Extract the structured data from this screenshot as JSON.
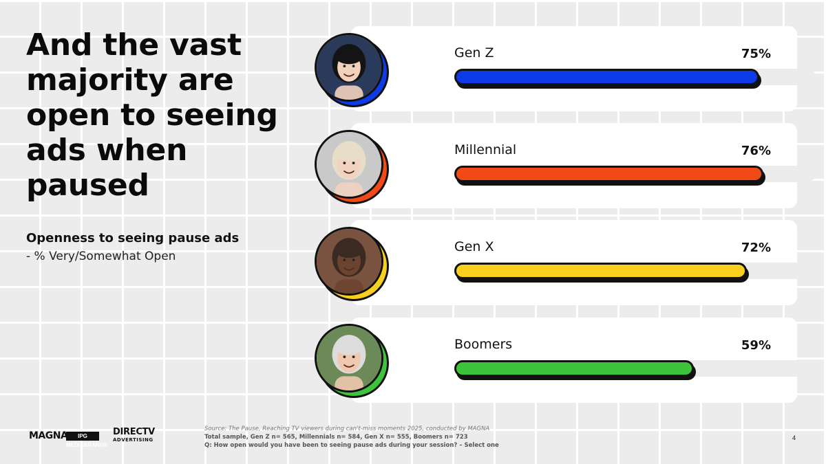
{
  "title": "And the vast majority are open to seeing ads when paused",
  "subtitle": "Openness to seeing pause ads",
  "subnote": "- % Very/Somewhat Open",
  "chart_data": {
    "type": "bar",
    "orientation": "horizontal",
    "ylim": [
      0,
      100
    ],
    "categories": [
      "Gen Z",
      "Millennial",
      "Gen X",
      "Boomers"
    ],
    "values": [
      75,
      76,
      72,
      59
    ],
    "value_labels": [
      "75%",
      "76%",
      "72%",
      "59%"
    ],
    "colors": [
      "#0d3be8",
      "#f24a17",
      "#f7cf1c",
      "#3ec43a"
    ],
    "accent_colors": [
      "#0d3be8",
      "#f24a17",
      "#f7cf1c",
      "#3ec43a"
    ]
  },
  "avatars": [
    {
      "icon": "person-avatar-icon",
      "skin": "#f2d2bc",
      "hair": "#141414",
      "bg": "#2a3a5a"
    },
    {
      "icon": "person-avatar-icon",
      "skin": "#f1d3c2",
      "hair": "#e8ddc7",
      "bg": "#c9c9c9"
    },
    {
      "icon": "person-avatar-icon",
      "skin": "#6b4430",
      "hair": "#3a2a22",
      "bg": "#7a5240"
    },
    {
      "icon": "person-avatar-icon",
      "skin": "#efc8b0",
      "hair": "#dcdcdc",
      "bg": "#6b8a58"
    }
  ],
  "logos": {
    "magna": "MAGNA",
    "magna_partner": "IPG MEDIABRANDS",
    "directv": "DIRECTV",
    "directv_sub": "ADVERTISING"
  },
  "footer": {
    "source": "Source: The Pause, Reaching TV viewers during can't-miss moments 2025, conducted by MAGNA",
    "sample": "Total sample, Gen Z n= 565, Millennials n= 584, Gen X n= 555, Boomers n= 723",
    "question": "Q: How open would you have been to seeing pause ads during your session? – Select one"
  },
  "page_number": "4"
}
